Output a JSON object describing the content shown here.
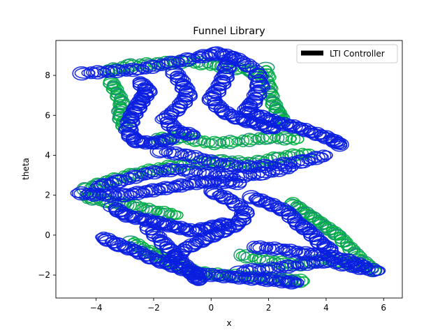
{
  "chart_data": {
    "type": "scatter",
    "title": "Funnel Library",
    "xlabel": "x",
    "ylabel": "theta",
    "xlim": [
      -5.4,
      6.65
    ],
    "ylim": [
      -3.15,
      9.75
    ],
    "xticks": [
      -4,
      -2,
      0,
      2,
      4,
      6
    ],
    "yticks": [
      -2,
      0,
      2,
      4,
      6,
      8
    ],
    "grid": false,
    "legend": {
      "placement": "top-right",
      "entries": [
        {
          "label": "LTI Controller",
          "color": "#000000"
        }
      ]
    },
    "colors": {
      "green": "#00b140",
      "teal": "#1a8a7a",
      "blue": "#0a1ee0"
    },
    "series": [
      {
        "color": "green",
        "points": [
          [
            -3.7,
            8.2
          ],
          [
            -2.8,
            8.5
          ],
          [
            -1.8,
            8.6
          ],
          [
            -0.8,
            8.7
          ],
          [
            0.2,
            8.5
          ],
          [
            1.2,
            8.3
          ],
          [
            1.8,
            8.0
          ]
        ]
      },
      {
        "color": "green",
        "points": [
          [
            -3.5,
            7.7
          ],
          [
            -3.3,
            7.2
          ],
          [
            -3.1,
            6.6
          ],
          [
            -3.2,
            6.0
          ],
          [
            -3.0,
            5.4
          ]
        ]
      },
      {
        "color": "green",
        "points": [
          [
            1.9,
            8.4
          ],
          [
            2.0,
            7.5
          ],
          [
            2.1,
            6.8
          ],
          [
            2.3,
            6.2
          ],
          [
            2.5,
            5.7
          ]
        ]
      },
      {
        "color": "green",
        "points": [
          [
            -1.9,
            4.8
          ],
          [
            -1.0,
            4.9
          ],
          [
            0.0,
            4.6
          ],
          [
            1.0,
            4.7
          ],
          [
            2.0,
            4.9
          ],
          [
            3.0,
            4.8
          ]
        ]
      },
      {
        "color": "green",
        "points": [
          [
            -4.4,
            2.3
          ],
          [
            -3.6,
            2.7
          ],
          [
            -2.6,
            3.1
          ],
          [
            -1.6,
            3.4
          ],
          [
            -0.6,
            3.6
          ],
          [
            0.4,
            3.7
          ],
          [
            1.4,
            3.6
          ],
          [
            2.4,
            3.9
          ],
          [
            3.4,
            4.1
          ]
        ]
      },
      {
        "color": "green",
        "points": [
          [
            -4.4,
            1.9
          ],
          [
            -3.6,
            1.7
          ],
          [
            -2.8,
            1.5
          ],
          [
            -2.0,
            1.2
          ],
          [
            -1.2,
            1.0
          ]
        ]
      },
      {
        "color": "green",
        "points": [
          [
            2.8,
            1.6
          ],
          [
            3.2,
            1.2
          ],
          [
            3.6,
            0.8
          ],
          [
            4.0,
            0.4
          ],
          [
            4.4,
            0.0
          ],
          [
            4.8,
            -0.6
          ],
          [
            5.2,
            -1.2
          ],
          [
            5.7,
            -1.8
          ]
        ]
      },
      {
        "color": "green",
        "points": [
          [
            -2.8,
            -0.3
          ],
          [
            -2.2,
            -0.8
          ],
          [
            -1.6,
            -1.2
          ],
          [
            -1.0,
            -1.6
          ],
          [
            -0.4,
            -1.9
          ],
          [
            0.4,
            -2.0
          ],
          [
            1.4,
            -2.1
          ],
          [
            2.4,
            -2.2
          ],
          [
            3.2,
            -2.3
          ]
        ]
      },
      {
        "color": "green",
        "points": [
          [
            1.0,
            -1.0
          ],
          [
            2.0,
            -1.3
          ],
          [
            3.0,
            -1.5
          ],
          [
            4.0,
            -1.2
          ],
          [
            5.0,
            -1.5
          ]
        ]
      },
      {
        "color": "blue",
        "points": [
          [
            -4.5,
            8.1
          ],
          [
            -3.5,
            8.2
          ],
          [
            -2.5,
            8.3
          ],
          [
            -1.5,
            8.6
          ],
          [
            -0.5,
            8.9
          ],
          [
            0.2,
            9.1
          ],
          [
            0.8,
            8.9
          ],
          [
            1.4,
            8.4
          ]
        ]
      },
      {
        "color": "blue",
        "points": [
          [
            -2.5,
            7.7
          ],
          [
            -2.2,
            7.2
          ],
          [
            -2.4,
            6.8
          ],
          [
            -2.6,
            6.3
          ],
          [
            -2.8,
            5.8
          ],
          [
            -2.9,
            5.1
          ],
          [
            -2.6,
            4.7
          ],
          [
            -2.0,
            4.6
          ],
          [
            -1.4,
            4.8
          ]
        ]
      },
      {
        "color": "blue",
        "points": [
          [
            -1.3,
            8.2
          ],
          [
            -1.0,
            7.6
          ],
          [
            -0.8,
            7.0
          ],
          [
            -1.1,
            6.4
          ],
          [
            -1.6,
            5.8
          ],
          [
            -1.2,
            5.2
          ],
          [
            -0.6,
            5.0
          ]
        ]
      },
      {
        "color": "blue",
        "points": [
          [
            0.6,
            8.8
          ],
          [
            0.5,
            8.0
          ],
          [
            0.3,
            7.4
          ],
          [
            0.0,
            6.8
          ],
          [
            0.4,
            6.2
          ],
          [
            1.0,
            5.8
          ],
          [
            1.6,
            5.6
          ],
          [
            2.2,
            5.3
          ]
        ]
      },
      {
        "color": "blue",
        "points": [
          [
            1.6,
            8.2
          ],
          [
            1.7,
            7.4
          ],
          [
            1.5,
            6.7
          ],
          [
            1.2,
            6.2
          ],
          [
            1.8,
            5.9
          ],
          [
            2.4,
            5.6
          ],
          [
            3.0,
            5.4
          ],
          [
            3.6,
            5.1
          ],
          [
            4.2,
            4.8
          ],
          [
            4.5,
            4.5
          ]
        ]
      },
      {
        "color": "blue",
        "points": [
          [
            -1.8,
            4.2
          ],
          [
            -0.8,
            4.0
          ],
          [
            0.2,
            3.6
          ],
          [
            1.2,
            3.4
          ],
          [
            2.2,
            3.5
          ],
          [
            3.2,
            3.7
          ],
          [
            4.0,
            4.0
          ]
        ]
      },
      {
        "color": "blue",
        "points": [
          [
            -4.0,
            2.4
          ],
          [
            -3.2,
            2.7
          ],
          [
            -2.2,
            3.1
          ],
          [
            -1.2,
            3.3
          ],
          [
            -0.2,
            3.1
          ],
          [
            0.8,
            2.9
          ],
          [
            1.8,
            3.1
          ],
          [
            2.8,
            3.4
          ]
        ]
      },
      {
        "color": "blue",
        "points": [
          [
            -4.6,
            2.1
          ],
          [
            -3.8,
            2.0
          ],
          [
            -3.0,
            2.0
          ],
          [
            -2.2,
            2.2
          ],
          [
            -1.4,
            2.4
          ],
          [
            -0.6,
            2.6
          ],
          [
            0.2,
            2.7
          ],
          [
            1.0,
            2.6
          ]
        ]
      },
      {
        "color": "blue",
        "points": [
          [
            -3.4,
            1.4
          ],
          [
            -3.0,
            1.0
          ],
          [
            -2.4,
            0.8
          ],
          [
            -1.8,
            0.6
          ],
          [
            -1.2,
            0.4
          ],
          [
            -0.6,
            0.2
          ],
          [
            0.0,
            0.4
          ],
          [
            0.6,
            0.6
          ]
        ]
      },
      {
        "color": "blue",
        "points": [
          [
            0.0,
            2.2
          ],
          [
            0.6,
            1.8
          ],
          [
            1.2,
            1.2
          ],
          [
            1.0,
            0.6
          ],
          [
            0.4,
            0.2
          ],
          [
            -0.2,
            -0.2
          ],
          [
            -0.8,
            -0.6
          ],
          [
            -1.4,
            -1.2
          ]
        ]
      },
      {
        "color": "blue",
        "points": [
          [
            1.4,
            1.9
          ],
          [
            2.0,
            1.6
          ],
          [
            2.6,
            1.2
          ],
          [
            3.0,
            0.6
          ],
          [
            3.4,
            0.2
          ],
          [
            3.8,
            -0.4
          ],
          [
            4.2,
            -0.8
          ]
        ]
      },
      {
        "color": "blue",
        "points": [
          [
            -3.8,
            -0.1
          ],
          [
            -3.2,
            -0.5
          ],
          [
            -2.6,
            -0.8
          ],
          [
            -2.0,
            -1.2
          ],
          [
            -1.4,
            -1.5
          ],
          [
            -0.8,
            -1.8
          ],
          [
            -0.2,
            -2.0
          ]
        ]
      },
      {
        "color": "blue",
        "points": [
          [
            -2.2,
            0.4
          ],
          [
            -1.8,
            -0.2
          ],
          [
            -1.4,
            -0.8
          ],
          [
            -1.0,
            -1.4
          ],
          [
            -0.6,
            -2.0
          ],
          [
            -0.4,
            -2.3
          ]
        ]
      },
      {
        "color": "blue",
        "points": [
          [
            1.0,
            -1.8
          ],
          [
            2.0,
            -1.7
          ],
          [
            3.0,
            -1.5
          ],
          [
            4.0,
            -1.3
          ],
          [
            5.0,
            -1.6
          ],
          [
            5.8,
            -1.8
          ]
        ]
      },
      {
        "color": "blue",
        "points": [
          [
            1.5,
            -0.6
          ],
          [
            2.4,
            -0.7
          ],
          [
            3.2,
            -0.9
          ],
          [
            4.0,
            -1.0
          ],
          [
            4.8,
            -1.3
          ],
          [
            5.4,
            -1.6
          ]
        ]
      },
      {
        "color": "blue",
        "points": [
          [
            0.0,
            -2.0
          ],
          [
            0.8,
            -2.1
          ],
          [
            1.6,
            -2.2
          ],
          [
            2.4,
            -2.3
          ],
          [
            3.0,
            -2.4
          ]
        ]
      }
    ]
  }
}
